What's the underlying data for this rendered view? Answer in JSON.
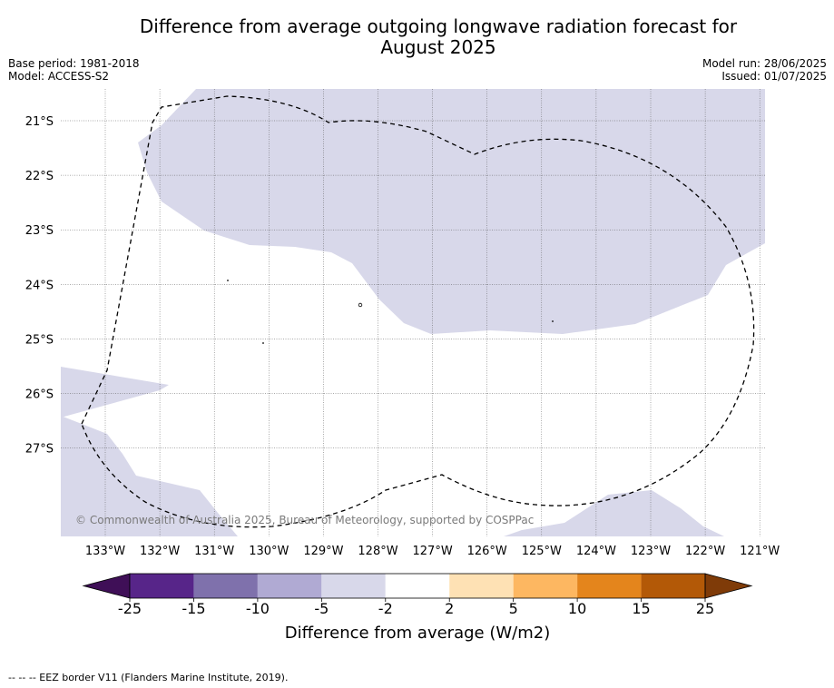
{
  "title": {
    "line1": "Difference from average outgoing longwave radiation forecast for",
    "line2": "August 2025"
  },
  "meta_left": {
    "base_period": "Base period: 1981-2018",
    "model": "Model: ACCESS-S2"
  },
  "meta_right": {
    "model_run": "Model run: 28/06/2025",
    "issued": "Issued: 01/07/2025"
  },
  "map": {
    "latitude_labels": [
      "21°S",
      "22°S",
      "23°S",
      "24°S",
      "25°S",
      "26°S",
      "27°S"
    ],
    "longitude_labels": [
      "133°W",
      "132°W",
      "131°W",
      "130°W",
      "129°W",
      "128°W",
      "127°W",
      "126°W",
      "125°W",
      "124°W",
      "123°W",
      "122°W",
      "121°W"
    ],
    "shaded_category": "-5 to -2",
    "shade_color": "#d8d8ea",
    "copyright": "© Commonwealth of Australia 2025, Bureau of Meteorology, supported by COSPPac"
  },
  "colorbar": {
    "title": "Difference from average (W/m2)",
    "tick_labels": [
      "-25",
      "-15",
      "-10",
      "-5",
      "-2",
      "2",
      "5",
      "10",
      "15",
      "25"
    ],
    "colors": [
      "#3f0f57",
      "#572589",
      "#7f71ac",
      "#b0aad3",
      "#d8d8ea",
      "#ffffff",
      "#fee1b4",
      "#fdb761",
      "#e4851c",
      "#b35907",
      "#7f3b08"
    ]
  },
  "footnote": "--  --  -- EEZ border V11 (Flanders Marine Institute, 2019)."
}
